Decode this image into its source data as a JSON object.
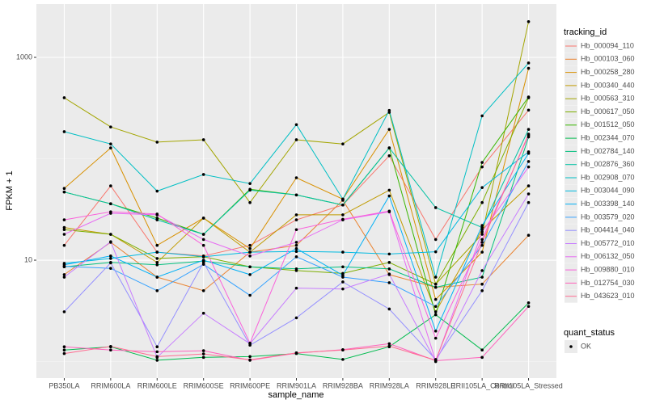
{
  "chart_data": {
    "type": "line",
    "x_label": "sample_name",
    "y_label": "FPKM + 1",
    "log_y": true,
    "grid": true,
    "legend_title": "tracking_id",
    "shape_legend_title": "quant_status",
    "shape_legend_labels": [
      "OK"
    ],
    "categories": [
      "PB350LA",
      "RRIM600LA",
      "RRIM600LE",
      "RRIM600SE",
      "RRIM600PE",
      "RRIM901LA",
      "RRIM928BA",
      "RRIM928LA",
      "RRIM928LE",
      "RRII105LA_Control",
      "RRII105LA_Stressed"
    ],
    "ylim": [
      0.687,
      3357
    ],
    "yticks": [
      10,
      1000
    ],
    "series": [
      {
        "name": "Hb_000094_110",
        "color": "#F8766D",
        "values": [
          14,
          54,
          12,
          11,
          14,
          25,
          35,
          107,
          16,
          83,
          302
        ]
      },
      {
        "name": "Hb_000103_060",
        "color": "#EA8331",
        "values": [
          7.2,
          15,
          6.8,
          5.0,
          12,
          14,
          39,
          7.2,
          5.4,
          5.8,
          17.6
        ]
      },
      {
        "name": "Hb_000258_280",
        "color": "#D89000",
        "values": [
          51,
          128,
          14,
          26,
          13,
          65,
          40,
          195,
          4.1,
          12,
          780
        ]
      },
      {
        "name": "Hb_000340_440",
        "color": "#C09B00",
        "values": [
          21,
          18,
          9.5,
          26,
          12,
          28,
          28,
          49,
          3.1,
          20,
          54
        ]
      },
      {
        "name": "Hb_000563_310",
        "color": "#A3A500",
        "values": [
          400,
          206,
          146,
          154,
          37,
          154,
          140,
          287,
          5.8,
          18,
          2250
        ]
      },
      {
        "name": "Hb_000617_050",
        "color": "#7CAE00",
        "values": [
          20,
          18,
          10.4,
          10.8,
          8.6,
          7.9,
          7.4,
          9.5,
          5.8,
          37,
          400
        ]
      },
      {
        "name": "Hb_001512_050",
        "color": "#39B600",
        "values": [
          47,
          36,
          26,
          18,
          50,
          44,
          35,
          128,
          2.9,
          92,
          407
        ]
      },
      {
        "name": "Hb_002344_070",
        "color": "#00BB4E",
        "values": [
          1.3,
          1.4,
          1.03,
          1.1,
          1.12,
          1.2,
          1.05,
          1.4,
          2.9,
          1.3,
          3.8
        ]
      },
      {
        "name": "Hb_002784_140",
        "color": "#00BF7D",
        "values": [
          8.6,
          9.5,
          9.0,
          9.8,
          8.6,
          8.2,
          8.6,
          8.2,
          5.4,
          6.8,
          164
        ]
      },
      {
        "name": "Hb_002876_360",
        "color": "#00C1A3",
        "values": [
          47,
          36,
          25,
          18,
          49,
          44,
          35,
          128,
          33,
          21,
          195
        ]
      },
      {
        "name": "Hb_002908_070",
        "color": "#00BFC4",
        "values": [
          185,
          140,
          48,
          70,
          57,
          217,
          40,
          300,
          6.8,
          265,
          880
        ]
      },
      {
        "name": "Hb_003044_090",
        "color": "#00BAE0",
        "values": [
          9.3,
          10.4,
          12,
          10.8,
          12,
          12.2,
          12,
          11.5,
          12.1,
          52,
          117
        ]
      },
      {
        "name": "Hb_003398_140",
        "color": "#00B0F6",
        "values": [
          9,
          11,
          6.8,
          10,
          7.2,
          13,
          7.1,
          43,
          2.0,
          22,
          113
        ]
      },
      {
        "name": "Hb_003579_020",
        "color": "#35A2FF",
        "values": [
          8.7,
          8.3,
          5,
          9.1,
          4.5,
          10.8,
          6.8,
          6,
          3.5,
          14,
          94
        ]
      },
      {
        "name": "Hb_004414_040",
        "color": "#9590FF",
        "values": [
          3.1,
          9.4,
          1.4,
          9.5,
          1.45,
          2.7,
          6.1,
          3.3,
          1.05,
          5,
          37
        ]
      },
      {
        "name": "Hb_005772_010",
        "color": "#C77CFF",
        "values": [
          6.8,
          15.2,
          1.1,
          3,
          1.5,
          5.3,
          5.2,
          7.3,
          1.0,
          7.9,
          45
        ]
      },
      {
        "name": "Hb_006132_050",
        "color": "#E76BF3",
        "values": [
          18,
          29,
          28,
          16,
          11,
          15,
          25,
          30,
          1.01,
          19,
          83
        ]
      },
      {
        "name": "Hb_009880_010",
        "color": "#FA62DB",
        "values": [
          25,
          30,
          28.5,
          14,
          1.52,
          20,
          25.3,
          30.5,
          1.7,
          16,
          170
        ]
      },
      {
        "name": "Hb_012754_030",
        "color": "#FF62BC",
        "values": [
          1.4,
          1.3,
          1.25,
          1.28,
          1.03,
          1.21,
          1.31,
          1.5,
          1.02,
          1.1,
          3.5
        ]
      },
      {
        "name": "Hb_043623_010",
        "color": "#FF6C91",
        "values": [
          1.2,
          1.41,
          1.12,
          1.19,
          1.04,
          1.22,
          1.3,
          1.42,
          1.03,
          15,
          175
        ]
      }
    ]
  }
}
